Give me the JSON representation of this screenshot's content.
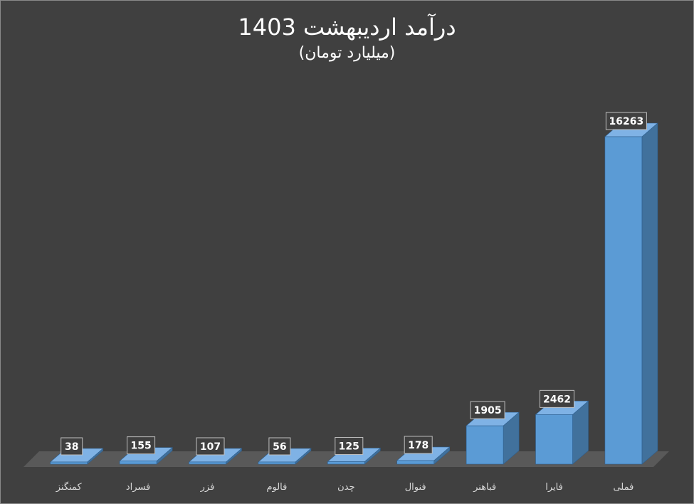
{
  "chart_data": {
    "type": "bar",
    "title": "درآمد اردیبهشت 1403",
    "subtitle": "(میلیارد تومان)",
    "categories": [
      "کمنگنز",
      "فسراد",
      "فزر",
      "فالوم",
      "چدن",
      "فنوال",
      "فباهنر",
      "فایرا",
      "فملی"
    ],
    "values": [
      38,
      155,
      107,
      56,
      125,
      178,
      1905,
      2462,
      16263
    ],
    "ylim": [
      0,
      16263
    ],
    "grid": false,
    "legend": "none",
    "bar_color": "#5b9bd5"
  }
}
